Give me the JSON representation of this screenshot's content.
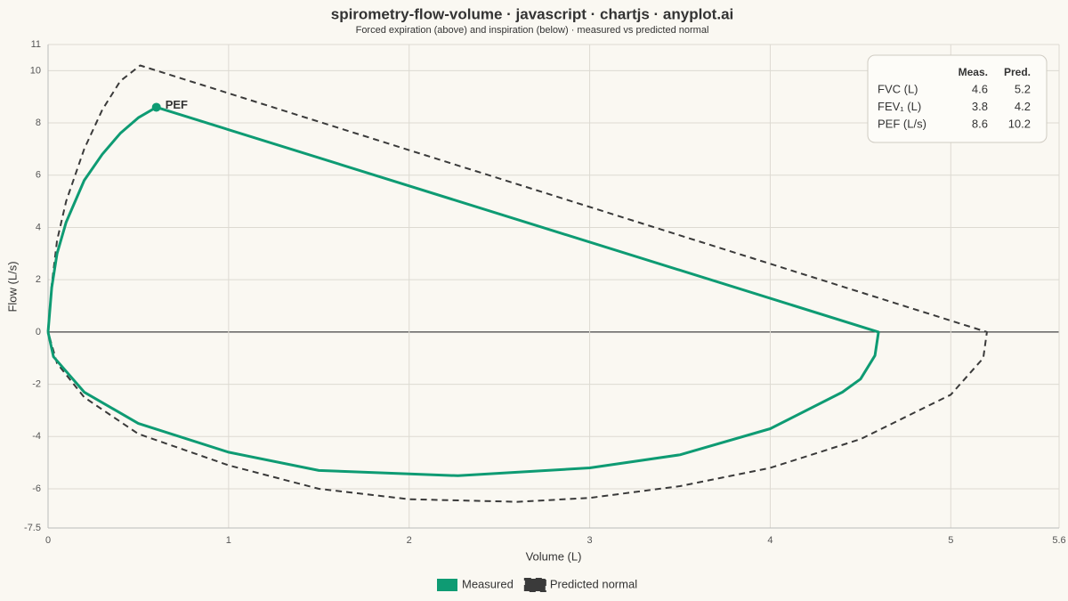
{
  "chart_data": {
    "type": "line",
    "title": "spirometry-flow-volume · javascript · chartjs · anyplot.ai",
    "subtitle": "Forced expiration (above) and inspiration (below) · measured vs predicted normal",
    "x_label": "Volume (L)",
    "y_label": "Flow (L/s)",
    "xlim": [
      0,
      5.6
    ],
    "ylim": [
      -7.5,
      11
    ],
    "xticks": [
      0,
      1,
      2,
      3,
      4,
      5,
      5.6
    ],
    "yticks": [
      11,
      10,
      8,
      6,
      4,
      2,
      0,
      -2,
      -4,
      -6,
      -7.5
    ],
    "grid": true,
    "series": [
      {
        "name": "Measured",
        "color": "#0e9b73",
        "line_style": "solid",
        "x": [
          0,
          0.02,
          0.05,
          0.1,
          0.2,
          0.3,
          0.4,
          0.5,
          0.6,
          4.6,
          4.58,
          4.5,
          4.4,
          4.0,
          3.5,
          3.0,
          2.27,
          1.5,
          1.0,
          0.5,
          0.2,
          0.03,
          0
        ],
        "values": [
          0,
          1.7,
          3.0,
          4.2,
          5.8,
          6.8,
          7.6,
          8.2,
          8.6,
          0,
          -0.9,
          -1.8,
          -2.3,
          -3.7,
          -4.7,
          -5.2,
          -5.5,
          -5.3,
          -4.6,
          -3.5,
          -2.3,
          -0.95,
          0
        ]
      },
      {
        "name": "Predicted normal",
        "color": "#3a3a3a",
        "line_style": "dashed",
        "x": [
          0,
          0.02,
          0.05,
          0.1,
          0.2,
          0.3,
          0.4,
          0.51,
          5.2,
          5.18,
          5.0,
          4.5,
          4.0,
          3.5,
          3.0,
          2.6,
          2.0,
          1.5,
          1.0,
          0.5,
          0.2,
          0.05,
          0
        ],
        "values": [
          0,
          1.8,
          3.5,
          5.0,
          7.0,
          8.5,
          9.6,
          10.2,
          0,
          -1.0,
          -2.4,
          -4.1,
          -5.2,
          -5.9,
          -6.35,
          -6.5,
          -6.4,
          -6.0,
          -5.1,
          -3.9,
          -2.5,
          -1.2,
          0
        ]
      }
    ],
    "pef_marker": {
      "x": 0.6,
      "y": 8.6,
      "label": "PEF",
      "color": "#0e9b73"
    },
    "summary_table": {
      "columns": [
        "Meas.",
        "Pred."
      ],
      "rows": [
        {
          "label": "FVC (L)",
          "measured": 4.6,
          "predicted": 5.2
        },
        {
          "label": "FEV₁ (L)",
          "measured": 3.8,
          "predicted": 4.2
        },
        {
          "label": "PEF (L/s)",
          "measured": 8.6,
          "predicted": 10.2
        }
      ]
    }
  }
}
